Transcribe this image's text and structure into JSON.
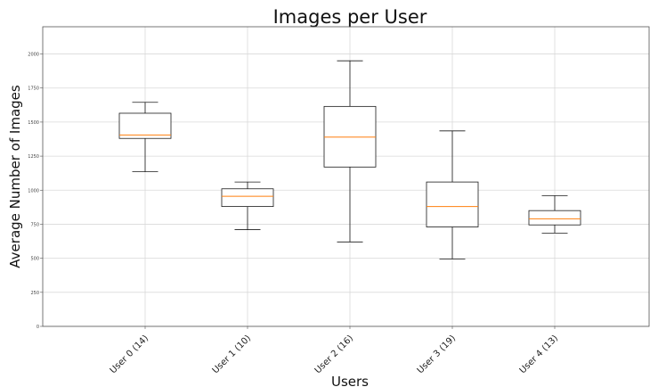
{
  "chart_data": {
    "type": "boxplot",
    "title": "Images per User",
    "xlabel": "Users",
    "ylabel": "Average Number of Images",
    "ylim": [
      0,
      2200
    ],
    "yticks": [
      0,
      250,
      500,
      750,
      1000,
      1250,
      1500,
      1750,
      2000
    ],
    "grid": true,
    "categories": [
      "User 0 (14)",
      "User 1 (10)",
      "User 2 (16)",
      "User 3 (19)",
      "User 4 (13)"
    ],
    "boxes": [
      {
        "label": "User 0 (14)",
        "whisker_low": 1135,
        "q1": 1380,
        "median": 1405,
        "q3": 1565,
        "whisker_high": 1645
      },
      {
        "label": "User 1 (10)",
        "whisker_low": 710,
        "q1": 880,
        "median": 955,
        "q3": 1010,
        "whisker_high": 1060
      },
      {
        "label": "User 2 (16)",
        "whisker_low": 620,
        "q1": 1170,
        "median": 1390,
        "q3": 1615,
        "whisker_high": 1950
      },
      {
        "label": "User 3 (19)",
        "whisker_low": 495,
        "q1": 730,
        "median": 880,
        "q3": 1060,
        "whisker_high": 1435
      },
      {
        "label": "User 4 (13)",
        "whisker_low": 685,
        "q1": 745,
        "median": 790,
        "q3": 850,
        "whisker_high": 960
      }
    ],
    "colors": {
      "box": "#1a1a1a",
      "median": "#ff7f0e",
      "grid": "#d9d9d9",
      "axis": "#555555"
    }
  }
}
